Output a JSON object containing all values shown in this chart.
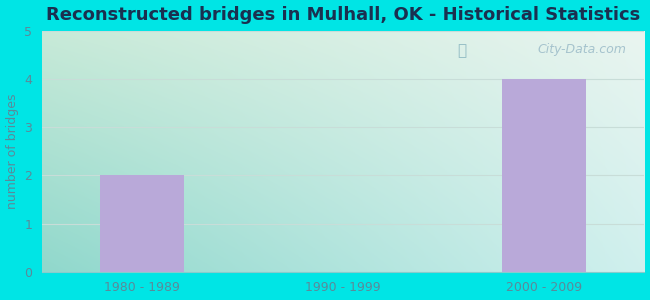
{
  "title": "Reconstructed bridges in Mulhall, OK - Historical Statistics",
  "categories": [
    "1980 - 1989",
    "1990 - 1999",
    "2000 - 2009"
  ],
  "values": [
    2,
    0,
    4
  ],
  "bar_color": "#b9a9d9",
  "ylabel": "number of bridges",
  "ylim": [
    0,
    5
  ],
  "yticks": [
    0,
    1,
    2,
    3,
    4,
    5
  ],
  "bg_outer": "#00e5e5",
  "bg_plot_tl": "#c8ead8",
  "bg_plot_tr": "#eaf5f0",
  "bg_plot_br": "#dff5f5",
  "bg_plot_bl": "#b0e8e0",
  "title_color": "#1a3050",
  "tick_color": "#5a8a9a",
  "grid_color": "#c8ddd8",
  "watermark": "City-Data.com",
  "title_fontsize": 13,
  "label_fontsize": 9,
  "tick_fontsize": 9
}
